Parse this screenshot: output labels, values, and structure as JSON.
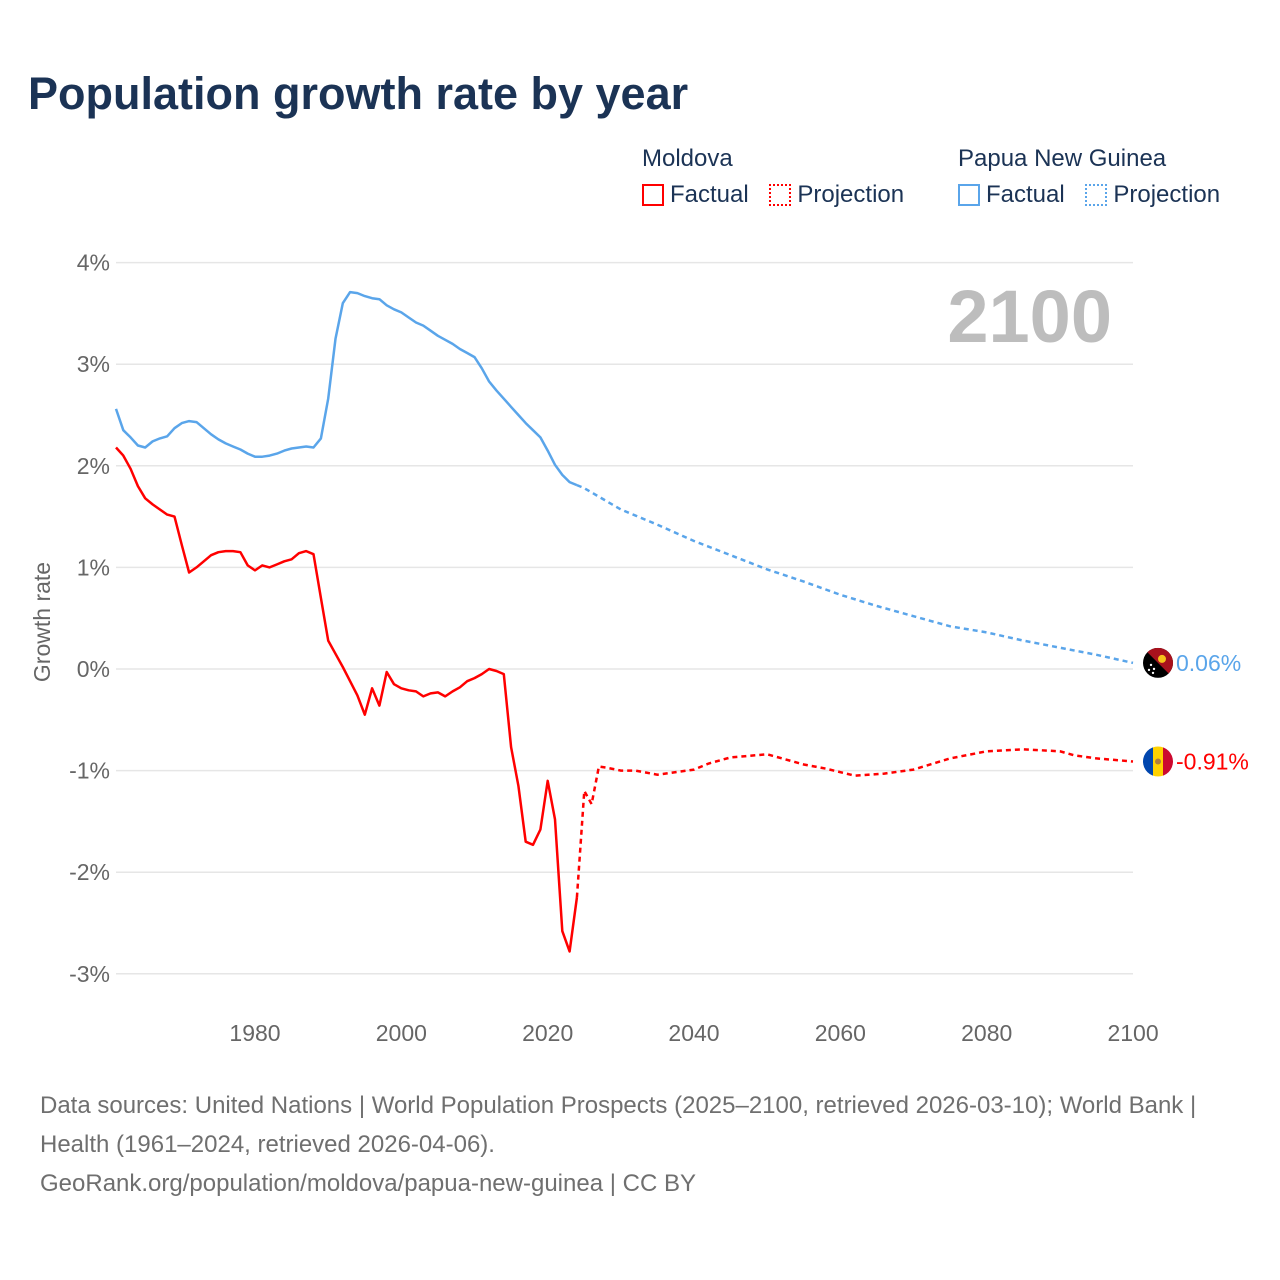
{
  "title": "Population growth rate by year",
  "legend": {
    "groups": [
      {
        "name": "Moldova",
        "color": "#ff0000",
        "factual": "Factual",
        "projection": "Projection"
      },
      {
        "name": "Papua New Guinea",
        "color": "#5aa5ea",
        "factual": "Factual",
        "projection": "Projection"
      }
    ]
  },
  "year_watermark": "2100",
  "footer": {
    "sources": "Data sources: United Nations | World Population Prospects (2025–2100, retrieved 2026-03-10); World Bank | Health (1961–2024, retrieved 2026-04-06).",
    "link": "GeoRank.org/population/moldova/papua-new-guinea | CC BY"
  },
  "chart_data": {
    "type": "line",
    "title": "Population growth rate by year",
    "xlabel": "",
    "ylabel": "Growth rate",
    "xlim": [
      1961,
      2100
    ],
    "ylim": [
      -3,
      4
    ],
    "xticks": [
      1980,
      2000,
      2020,
      2040,
      2060,
      2080,
      2100
    ],
    "xtick_labels": [
      "1980",
      "2000",
      "2020",
      "2040",
      "2060",
      "2080",
      "2100"
    ],
    "yticks": [
      4,
      3,
      2,
      1,
      0,
      -1,
      -2,
      -3
    ],
    "ytick_labels": [
      "4%",
      "3%",
      "2%",
      "1%",
      "0%",
      "-1%",
      "-2%",
      "-3%"
    ],
    "grid": true,
    "legend_position": "top-right",
    "series": [
      {
        "name": "Moldova",
        "color": "#ff0000",
        "end_label": "-0.91%",
        "factual": {
          "x": [
            1961,
            1962,
            1963,
            1964,
            1965,
            1966,
            1967,
            1968,
            1969,
            1970,
            1971,
            1972,
            1973,
            1974,
            1975,
            1976,
            1977,
            1978,
            1979,
            1980,
            1981,
            1982,
            1983,
            1984,
            1985,
            1986,
            1987,
            1988,
            1989,
            1990,
            1991,
            1992,
            1993,
            1994,
            1995,
            1996,
            1997,
            1998,
            1999,
            2000,
            2001,
            2002,
            2003,
            2004,
            2005,
            2006,
            2007,
            2008,
            2009,
            2010,
            2011,
            2012,
            2013,
            2014,
            2015,
            2016,
            2017,
            2018,
            2019,
            2020,
            2021,
            2022,
            2023,
            2024
          ],
          "y": [
            2.18,
            2.1,
            1.97,
            1.8,
            1.68,
            1.62,
            1.57,
            1.52,
            1.5,
            1.22,
            0.95,
            1.0,
            1.06,
            1.12,
            1.15,
            1.16,
            1.16,
            1.15,
            1.02,
            0.97,
            1.02,
            1.0,
            1.03,
            1.06,
            1.08,
            1.14,
            1.16,
            1.13,
            0.7,
            0.28,
            0.15,
            0.02,
            -0.12,
            -0.26,
            -0.45,
            -0.19,
            -0.36,
            -0.03,
            -0.15,
            -0.19,
            -0.21,
            -0.22,
            -0.27,
            -0.24,
            -0.23,
            -0.27,
            -0.22,
            -0.18,
            -0.12,
            -0.09,
            -0.05,
            0.0,
            -0.02,
            -0.05,
            -0.77,
            -1.15,
            -1.7,
            -1.73,
            -1.58,
            -1.1,
            -1.48,
            -2.58,
            -2.78,
            -2.25
          ]
        },
        "projection": {
          "x": [
            2024,
            2025,
            2026,
            2027,
            2028,
            2030,
            2032,
            2035,
            2040,
            2042,
            2045,
            2050,
            2055,
            2058,
            2062,
            2066,
            2070,
            2075,
            2080,
            2085,
            2090,
            2092,
            2095,
            2100
          ],
          "y": [
            -2.25,
            -1.2,
            -1.33,
            -0.96,
            -0.97,
            -1.0,
            -1.0,
            -1.04,
            -0.99,
            -0.93,
            -0.87,
            -0.84,
            -0.94,
            -0.98,
            -1.05,
            -1.03,
            -0.99,
            -0.88,
            -0.81,
            -0.79,
            -0.81,
            -0.85,
            -0.88,
            -0.91
          ]
        }
      },
      {
        "name": "Papua New Guinea",
        "color": "#5aa5ea",
        "end_label": "0.06%",
        "factual": {
          "x": [
            1961,
            1962,
            1963,
            1964,
            1965,
            1966,
            1967,
            1968,
            1969,
            1970,
            1971,
            1972,
            1973,
            1974,
            1975,
            1976,
            1977,
            1978,
            1979,
            1980,
            1981,
            1982,
            1983,
            1984,
            1985,
            1986,
            1987,
            1988,
            1989,
            1990,
            1991,
            1992,
            1993,
            1994,
            1995,
            1996,
            1997,
            1998,
            1999,
            2000,
            2001,
            2002,
            2003,
            2004,
            2005,
            2006,
            2007,
            2008,
            2009,
            2010,
            2011,
            2012,
            2013,
            2014,
            2015,
            2016,
            2017,
            2018,
            2019,
            2020,
            2021,
            2022,
            2023,
            2024
          ],
          "y": [
            2.56,
            2.35,
            2.28,
            2.2,
            2.18,
            2.24,
            2.27,
            2.29,
            2.37,
            2.42,
            2.44,
            2.43,
            2.37,
            2.31,
            2.26,
            2.22,
            2.19,
            2.16,
            2.12,
            2.09,
            2.09,
            2.1,
            2.12,
            2.15,
            2.17,
            2.18,
            2.19,
            2.18,
            2.27,
            2.66,
            3.25,
            3.6,
            3.71,
            3.7,
            3.67,
            3.65,
            3.64,
            3.58,
            3.54,
            3.51,
            3.46,
            3.41,
            3.38,
            3.33,
            3.28,
            3.24,
            3.2,
            3.15,
            3.11,
            3.07,
            2.96,
            2.83,
            2.74,
            2.66,
            2.58,
            2.5,
            2.42,
            2.35,
            2.28,
            2.15,
            2.01,
            1.91,
            1.84,
            1.81
          ]
        },
        "projection": {
          "x": [
            2024,
            2025,
            2030,
            2035,
            2040,
            2045,
            2050,
            2055,
            2060,
            2065,
            2070,
            2075,
            2080,
            2085,
            2090,
            2095,
            2100
          ],
          "y": [
            1.81,
            1.78,
            1.57,
            1.42,
            1.26,
            1.12,
            0.98,
            0.86,
            0.73,
            0.62,
            0.52,
            0.42,
            0.36,
            0.28,
            0.21,
            0.14,
            0.06
          ]
        }
      }
    ]
  }
}
